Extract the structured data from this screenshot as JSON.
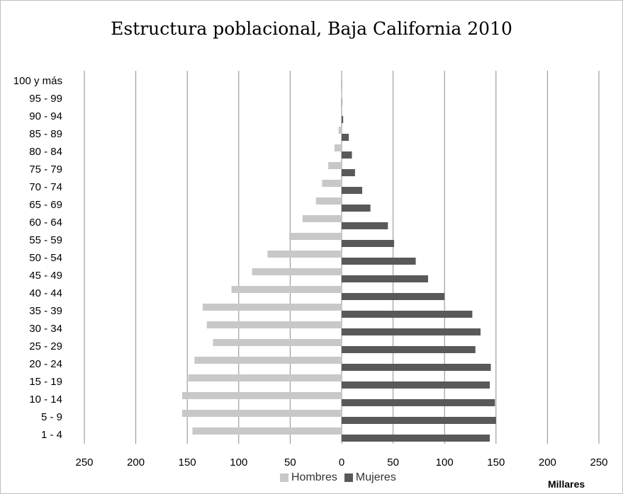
{
  "chart_data": {
    "type": "bar",
    "orientation": "horizontal",
    "title": "Estructura poblacional, Baja California 2010",
    "categories": [
      "1 - 4",
      "5 - 9",
      "10 - 14",
      "15 - 19",
      "20 - 24",
      "25 - 29",
      "30 - 34",
      "35 - 39",
      "40 - 44",
      "45 - 49",
      "50 - 54",
      "55 - 59",
      "60 - 64",
      "65 - 69",
      "70 - 74",
      "75 - 79",
      "80 - 84",
      "85 - 89",
      "90 - 94",
      "95 - 99",
      "100 y más"
    ],
    "series": [
      {
        "name": "Hombres",
        "color": "#c8c8c8",
        "values": [
          145,
          155,
          155,
          149,
          143,
          125,
          131,
          135,
          107,
          87,
          72,
          51,
          38,
          25,
          19,
          13,
          7,
          3,
          0.7,
          0.2,
          0.1
        ]
      },
      {
        "name": "Mujeres",
        "color": "#595959",
        "values": [
          144,
          150,
          149,
          144,
          145,
          130,
          135,
          127,
          100,
          84,
          72,
          51,
          45,
          28,
          20,
          13,
          10,
          7,
          1.5,
          0.4,
          0.2
        ]
      }
    ],
    "xticks": [
      "250",
      "200",
      "150",
      "100",
      "50",
      "0",
      "50",
      "100",
      "150",
      "200",
      "250"
    ],
    "xlim": [
      -250,
      250
    ],
    "xunit_label": "Millares",
    "grid": true,
    "legend_position": "bottom"
  }
}
